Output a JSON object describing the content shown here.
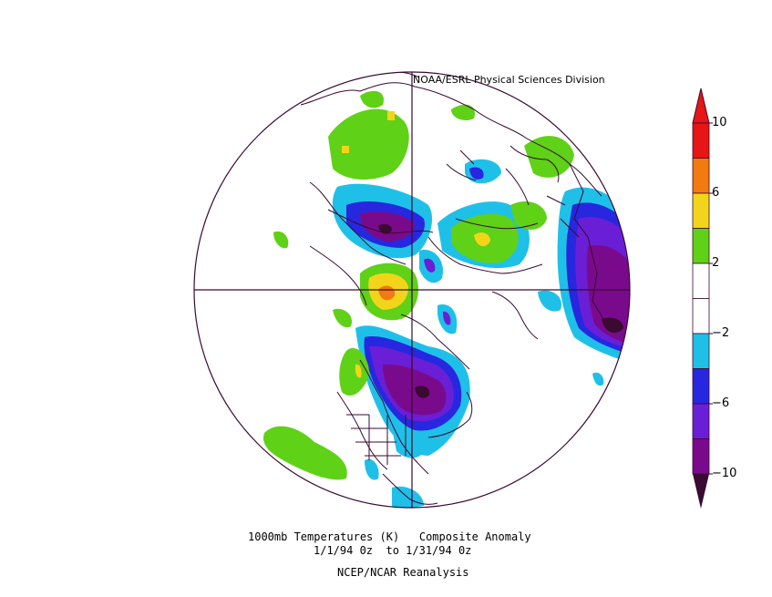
{
  "header": {
    "credit": "NOAA/ESRL Physical Sciences Division"
  },
  "caption": {
    "line1": "1000mb Temperatures (K)   Composite Anomaly",
    "line2": "1/1/94 0z  to 1/31/94 0z",
    "line3": "NCEP/NCAR Reanalysis"
  },
  "colorbar": {
    "ticks": [
      "10",
      "6",
      "2",
      "−2",
      "−6",
      "−10"
    ],
    "bins": [
      {
        "color": "#7a0a8c"
      },
      {
        "color": "#6a1fd6"
      },
      {
        "color": "#2727e0"
      },
      {
        "color": "#1fc0e8"
      },
      {
        "color": "#ffffff"
      },
      {
        "color": "#ffffff"
      },
      {
        "color": "#5fd117"
      },
      {
        "color": "#f2d51a"
      },
      {
        "color": "#f27a10"
      },
      {
        "color": "#e81515"
      }
    ],
    "lower_arrow_color": "#3a0a30",
    "upper_arrow_color": "#e81515"
  },
  "map": {
    "projection": "north-polar-stereographic",
    "outline_color": "#3a0a30"
  }
}
